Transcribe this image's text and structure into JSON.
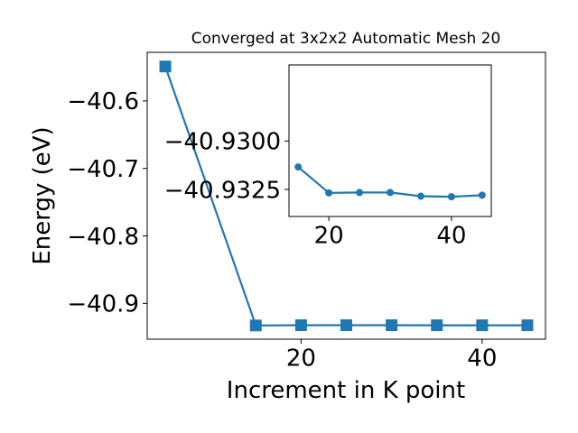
{
  "chart_data": [
    {
      "type": "line",
      "title": "Converged at 3x2x2 Automatic Mesh 20",
      "xlabel": "Increment in K point",
      "ylabel": "Energy (eV)",
      "x": [
        5,
        15,
        20,
        25,
        30,
        35,
        40,
        45
      ],
      "series": [
        {
          "values": [
            -40.549,
            -40.9327,
            -40.9323,
            -40.9323,
            -40.9323,
            -40.9324,
            -40.9324,
            -40.9324
          ]
        }
      ],
      "xlim": [
        3.0,
        47.0
      ],
      "ylim": [
        -40.953,
        -40.528
      ],
      "xticks": [
        20,
        40
      ],
      "xtick_labels": [
        "20",
        "40"
      ],
      "yticks": [
        -40.6,
        -40.7,
        -40.8,
        -40.9
      ],
      "ytick_labels": [
        "−40.6",
        "−40.7",
        "−40.8",
        "−40.9"
      ],
      "marker": "square",
      "color": "#1f77b4",
      "grid": false,
      "legend": "none"
    },
    {
      "type": "line",
      "title": "",
      "xlabel": "",
      "ylabel": "",
      "x": [
        15,
        20,
        25,
        30,
        35,
        40,
        45
      ],
      "series": [
        {
          "values": [
            -40.93134,
            -40.93268,
            -40.93266,
            -40.93266,
            -40.93285,
            -40.93288,
            -40.9328
          ]
        }
      ],
      "xlim": [
        13.5,
        46.5
      ],
      "ylim": [
        -40.9339,
        -40.92607
      ],
      "xticks": [
        20,
        40
      ],
      "xtick_labels": [
        "20",
        "40"
      ],
      "yticks": [
        -40.9325,
        -40.93
      ],
      "ytick_labels": [
        "−40.9325",
        "−40.9300"
      ],
      "marker": "circle",
      "color": "#1f77b4",
      "grid": false,
      "legend": "none"
    }
  ]
}
